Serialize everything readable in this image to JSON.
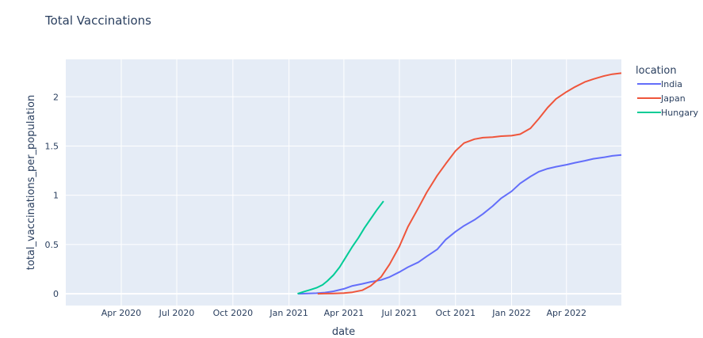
{
  "chart_data": {
    "type": "line",
    "title": "Total Vaccinations",
    "xlabel": "date",
    "ylabel": "total_vaccinations_per_population",
    "xlim": [
      "2020-01-01",
      "2022-06-30"
    ],
    "ylim": [
      -0.12,
      2.38
    ],
    "x_ticks": [
      {
        "date": "2020-04-01",
        "label": "Apr 2020"
      },
      {
        "date": "2020-07-01",
        "label": "Jul 2020"
      },
      {
        "date": "2020-10-01",
        "label": "Oct 2020"
      },
      {
        "date": "2021-01-01",
        "label": "Jan 2021"
      },
      {
        "date": "2021-04-01",
        "label": "Apr 2021"
      },
      {
        "date": "2021-07-01",
        "label": "Jul 2021"
      },
      {
        "date": "2021-10-01",
        "label": "Oct 2021"
      },
      {
        "date": "2022-01-01",
        "label": "Jan 2022"
      },
      {
        "date": "2022-04-01",
        "label": "Apr 2022"
      }
    ],
    "y_ticks": [
      {
        "value": 0,
        "label": "0"
      },
      {
        "value": 0.5,
        "label": "0.5"
      },
      {
        "value": 1,
        "label": "1"
      },
      {
        "value": 1.5,
        "label": "1.5"
      },
      {
        "value": 2,
        "label": "2"
      }
    ],
    "grid": true,
    "background": "#e5ecf6",
    "legend": {
      "title": "location",
      "placement": "right"
    },
    "series": [
      {
        "name": "India",
        "color": "#636efa",
        "x": [
          "2021-01-16",
          "2021-02-01",
          "2021-02-15",
          "2021-03-01",
          "2021-03-15",
          "2021-04-01",
          "2021-04-15",
          "2021-05-01",
          "2021-05-15",
          "2021-06-01",
          "2021-06-15",
          "2021-07-01",
          "2021-07-15",
          "2021-08-01",
          "2021-08-15",
          "2021-09-01",
          "2021-09-15",
          "2021-10-01",
          "2021-10-15",
          "2021-11-01",
          "2021-11-15",
          "2021-12-01",
          "2021-12-15",
          "2022-01-01",
          "2022-01-15",
          "2022-02-01",
          "2022-02-15",
          "2022-03-01",
          "2022-03-15",
          "2022-04-01",
          "2022-04-15",
          "2022-05-01",
          "2022-05-15",
          "2022-06-01",
          "2022-06-15",
          "2022-06-30"
        ],
        "y": [
          0.0,
          0.002,
          0.005,
          0.012,
          0.025,
          0.05,
          0.08,
          0.1,
          0.12,
          0.14,
          0.17,
          0.22,
          0.27,
          0.32,
          0.38,
          0.45,
          0.55,
          0.63,
          0.69,
          0.75,
          0.81,
          0.89,
          0.97,
          1.04,
          1.12,
          1.19,
          1.24,
          1.27,
          1.29,
          1.31,
          1.33,
          1.35,
          1.37,
          1.385,
          1.4,
          1.41
        ]
      },
      {
        "name": "Japan",
        "color": "#ef553b",
        "x": [
          "2021-02-17",
          "2021-03-01",
          "2021-03-15",
          "2021-04-01",
          "2021-04-15",
          "2021-05-01",
          "2021-05-15",
          "2021-06-01",
          "2021-06-15",
          "2021-07-01",
          "2021-07-15",
          "2021-08-01",
          "2021-08-15",
          "2021-09-01",
          "2021-09-15",
          "2021-10-01",
          "2021-10-15",
          "2021-11-01",
          "2021-11-15",
          "2021-12-01",
          "2021-12-15",
          "2022-01-01",
          "2022-01-15",
          "2022-02-01",
          "2022-02-15",
          "2022-03-01",
          "2022-03-15",
          "2022-04-01",
          "2022-04-15",
          "2022-05-01",
          "2022-05-15",
          "2022-06-01",
          "2022-06-15",
          "2022-06-30"
        ],
        "y": [
          0.0,
          0.001,
          0.003,
          0.007,
          0.015,
          0.035,
          0.08,
          0.17,
          0.3,
          0.48,
          0.68,
          0.87,
          1.03,
          1.2,
          1.32,
          1.45,
          1.53,
          1.57,
          1.585,
          1.59,
          1.6,
          1.605,
          1.62,
          1.68,
          1.78,
          1.89,
          1.98,
          2.05,
          2.1,
          2.15,
          2.18,
          2.21,
          2.23,
          2.24
        ]
      },
      {
        "name": "Hungary",
        "color": "#00cc96",
        "x": [
          "2021-01-15",
          "2021-01-25",
          "2021-02-05",
          "2021-02-15",
          "2021-02-25",
          "2021-03-05",
          "2021-03-15",
          "2021-03-25",
          "2021-04-05",
          "2021-04-15",
          "2021-04-25",
          "2021-05-05",
          "2021-05-15",
          "2021-05-25",
          "2021-06-05"
        ],
        "y": [
          0.0,
          0.02,
          0.04,
          0.06,
          0.09,
          0.13,
          0.19,
          0.27,
          0.38,
          0.48,
          0.57,
          0.67,
          0.76,
          0.85,
          0.94
        ]
      }
    ]
  }
}
